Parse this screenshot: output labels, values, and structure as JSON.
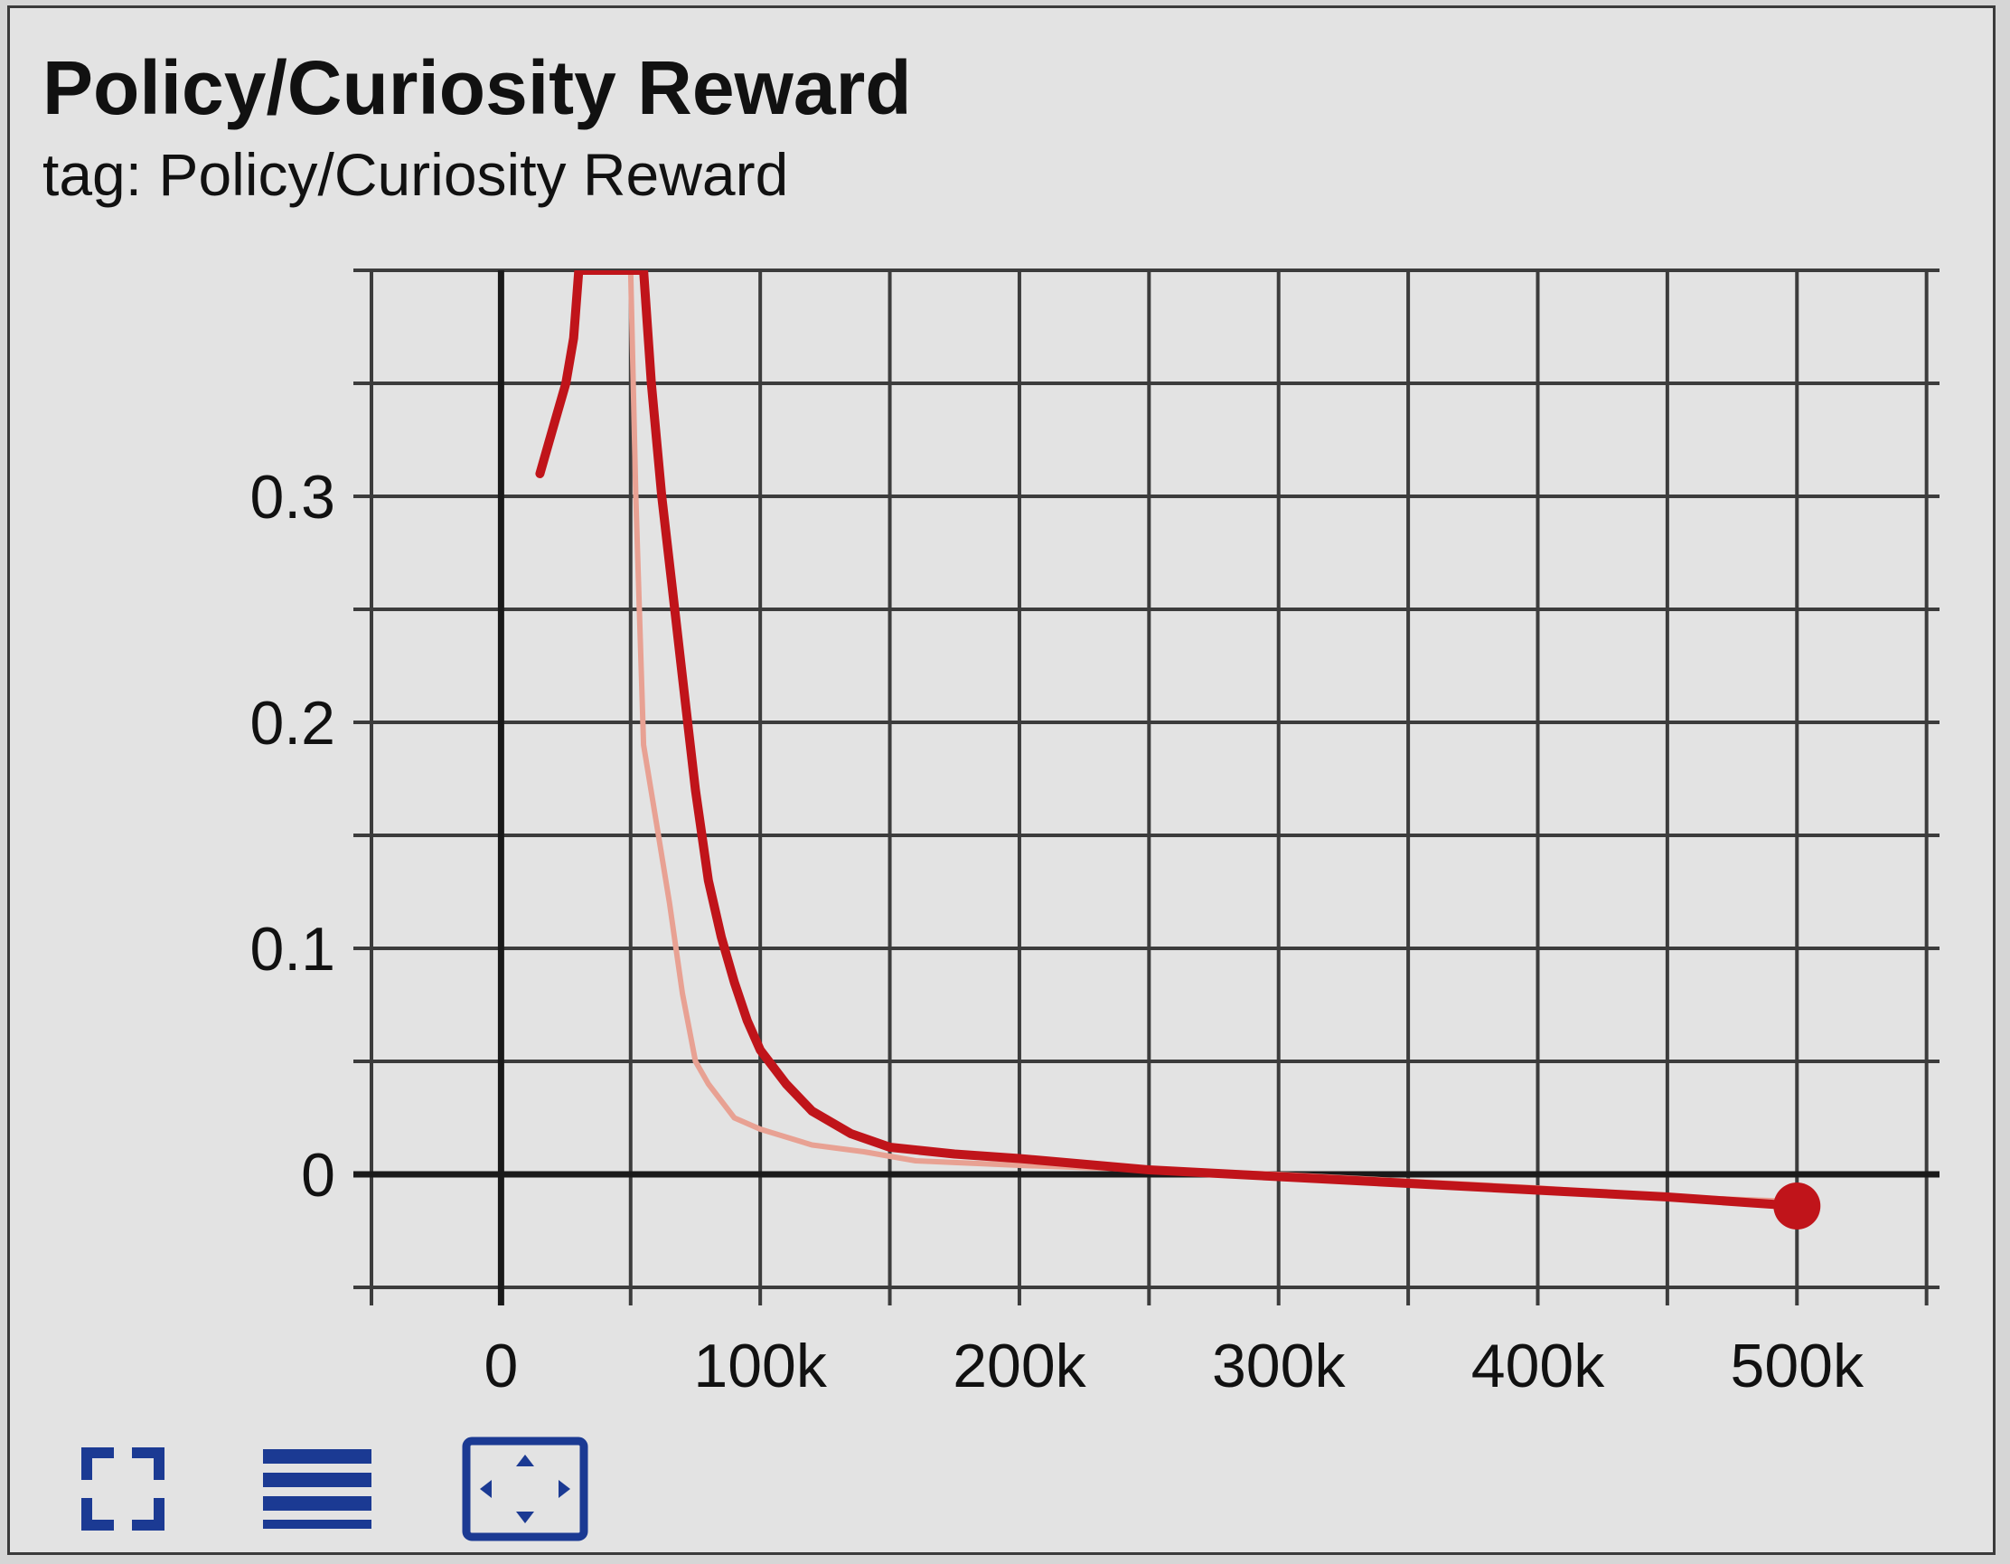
{
  "header": {
    "title": "Policy/Curiosity Reward",
    "subtitle": "tag: Policy/Curiosity Reward"
  },
  "colors": {
    "smoothed": "#c0141a",
    "raw": "#e8a193",
    "grid": "#3c3c3c",
    "axis": "#1a1a1a",
    "icon": "#1b3a93"
  },
  "toolbar": {
    "icons": [
      "fullscreen-icon",
      "data-list-icon",
      "fit-domain-icon"
    ]
  },
  "chart_data": {
    "type": "line",
    "title": "Policy/Curiosity Reward",
    "subtitle": "tag: Policy/Curiosity Reward",
    "xlabel": "",
    "ylabel": "",
    "xlim": [
      -50000,
      555000
    ],
    "ylim": [
      -0.05,
      0.4
    ],
    "x_ticks": [
      0,
      100000,
      200000,
      300000,
      400000,
      500000
    ],
    "x_tick_labels": [
      "0",
      "100k",
      "200k",
      "300k",
      "400k",
      "500k"
    ],
    "y_ticks": [
      0,
      0.1,
      0.2,
      0.3
    ],
    "y_tick_labels": [
      "0",
      "0.1",
      "0.2",
      "0.3"
    ],
    "grid": true,
    "series": [
      {
        "role": "raw",
        "color": "#e8a193",
        "x": [
          50000,
          52000,
          55000,
          60000,
          65000,
          70000,
          75000,
          80000,
          90000,
          100000,
          120000,
          140000,
          160000,
          200000,
          250000,
          300000,
          350000,
          400000,
          450000,
          500000
        ],
        "y": [
          0.4,
          0.3,
          0.19,
          0.155,
          0.12,
          0.08,
          0.05,
          0.04,
          0.025,
          0.02,
          0.013,
          0.01,
          0.006,
          0.004,
          0.002,
          0.0,
          -0.003,
          -0.006,
          -0.01,
          -0.012
        ]
      },
      {
        "role": "smoothed",
        "color": "#c0141a",
        "x": [
          15000,
          20000,
          25000,
          28000,
          30000,
          55000,
          58000,
          62000,
          66000,
          70000,
          75000,
          80000,
          85000,
          90000,
          95000,
          100000,
          110000,
          120000,
          135000,
          150000,
          175000,
          200000,
          250000,
          300000,
          350000,
          400000,
          450000,
          500000
        ],
        "y": [
          0.31,
          0.33,
          0.35,
          0.37,
          0.4,
          0.4,
          0.35,
          0.3,
          0.26,
          0.22,
          0.17,
          0.13,
          0.105,
          0.085,
          0.068,
          0.055,
          0.04,
          0.028,
          0.018,
          0.012,
          0.009,
          0.007,
          0.002,
          -0.001,
          -0.004,
          -0.007,
          -0.01,
          -0.014
        ]
      }
    ],
    "highlight_point": {
      "x": 500000,
      "y": -0.014
    }
  }
}
